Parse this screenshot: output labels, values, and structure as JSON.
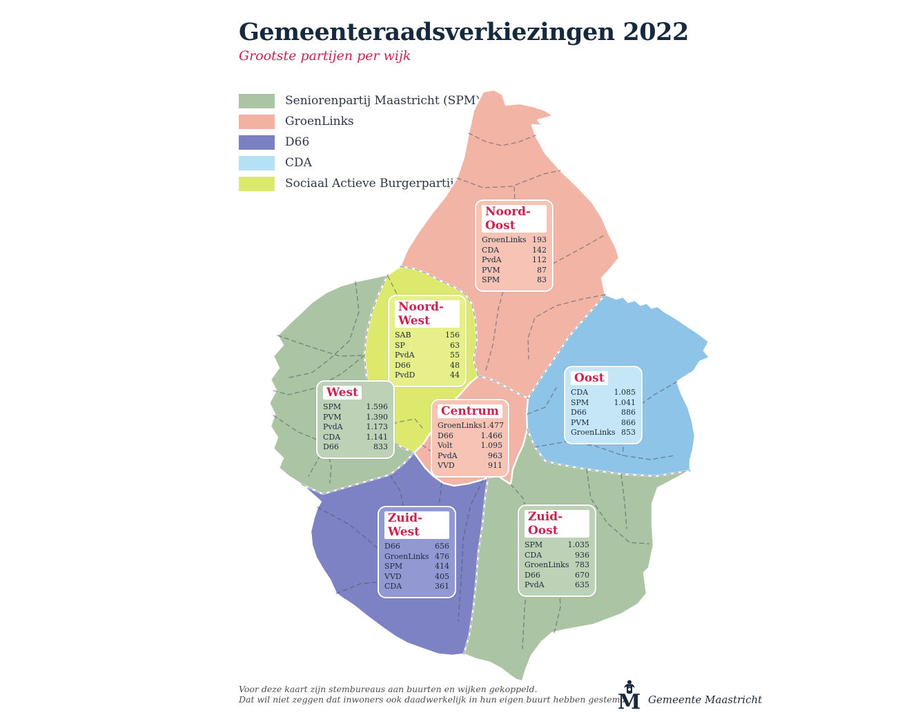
{
  "page": {
    "title": "Gemeenteraadsverkiezingen 2022",
    "subtitle": "Grootste partijen per wijk"
  },
  "accent_colors": {
    "title_navy": "#17293c",
    "crimson": "#c22550"
  },
  "legend": {
    "items": [
      {
        "label": "Seniorenpartij Maastricht (SPM)",
        "color": "#aac4a4"
      },
      {
        "label": "GroenLinks",
        "color": "#f2b2a2"
      },
      {
        "label": "D66",
        "color": "#7b80c3"
      },
      {
        "label": "CDA",
        "color": "#b6e0f4"
      },
      {
        "label": "Sociaal Actieve Burgerpartij (SAB)",
        "color": "#dde96c"
      }
    ]
  },
  "districts": [
    {
      "name": "Noord-Oost",
      "color": "#f2b5a5",
      "box_color": "#f6c3b4",
      "rows": [
        {
          "party": "GroenLinks",
          "value": "193"
        },
        {
          "party": "CDA",
          "value": "142"
        },
        {
          "party": "PvdA",
          "value": "112"
        },
        {
          "party": "PVM",
          "value": "87"
        },
        {
          "party": "SPM",
          "value": "83"
        }
      ]
    },
    {
      "name": "Noord-West",
      "color": "#dde96c",
      "box_color": "#e6ef8a",
      "rows": [
        {
          "party": "SAB",
          "value": "156"
        },
        {
          "party": "SP",
          "value": "63"
        },
        {
          "party": "PvdA",
          "value": "55"
        },
        {
          "party": "D66",
          "value": "48"
        },
        {
          "party": "PvdD",
          "value": "44"
        }
      ]
    },
    {
      "name": "West",
      "color": "#aac4a4",
      "box_color": "#bdd1b6",
      "rows": [
        {
          "party": "SPM",
          "value": "1.596"
        },
        {
          "party": "PVM",
          "value": "1.390"
        },
        {
          "party": "PvdA",
          "value": "1.173"
        },
        {
          "party": "CDA",
          "value": "1.141"
        },
        {
          "party": "D66",
          "value": "833"
        }
      ]
    },
    {
      "name": "Centrum",
      "color": "#f2b5a5",
      "box_color": "#f6c3b4",
      "rows": [
        {
          "party": "GroenLinks",
          "value": "1.477"
        },
        {
          "party": "D66",
          "value": "1.466"
        },
        {
          "party": "Volt",
          "value": "1.095"
        },
        {
          "party": "PvdA",
          "value": "963"
        },
        {
          "party": "VVD",
          "value": "911"
        }
      ]
    },
    {
      "name": "Oost",
      "color": "#8ec4e8",
      "box_color": "#c5e6f7",
      "rows": [
        {
          "party": "CDA",
          "value": "1.085"
        },
        {
          "party": "SPM",
          "value": "1.041"
        },
        {
          "party": "D66",
          "value": "886"
        },
        {
          "party": "PVM",
          "value": "866"
        },
        {
          "party": "GroenLinks",
          "value": "853"
        }
      ]
    },
    {
      "name": "Zuid-West",
      "color": "#7d82c5",
      "box_color": "#9298d1",
      "rows": [
        {
          "party": "D66",
          "value": "656"
        },
        {
          "party": "GroenLinks",
          "value": "476"
        },
        {
          "party": "SPM",
          "value": "414"
        },
        {
          "party": "VVD",
          "value": "405"
        },
        {
          "party": "CDA",
          "value": "361"
        }
      ]
    },
    {
      "name": "Zuid-Oost",
      "color": "#aac4a4",
      "box_color": "#bdd1b6",
      "rows": [
        {
          "party": "SPM",
          "value": "1.035"
        },
        {
          "party": "CDA",
          "value": "936"
        },
        {
          "party": "GroenLinks",
          "value": "783"
        },
        {
          "party": "D66",
          "value": "670"
        },
        {
          "party": "PvdA",
          "value": "635"
        }
      ]
    }
  ],
  "footer": {
    "line1": "Voor deze kaart zijn stembureaus aan buurten en wijken gekoppeld.",
    "line2": "Dat wil niet zeggen dat inwoners ook daadwerkelijk in hun eigen buurt hebben gestemd."
  },
  "logo": {
    "text": "Gemeente Maastricht"
  }
}
